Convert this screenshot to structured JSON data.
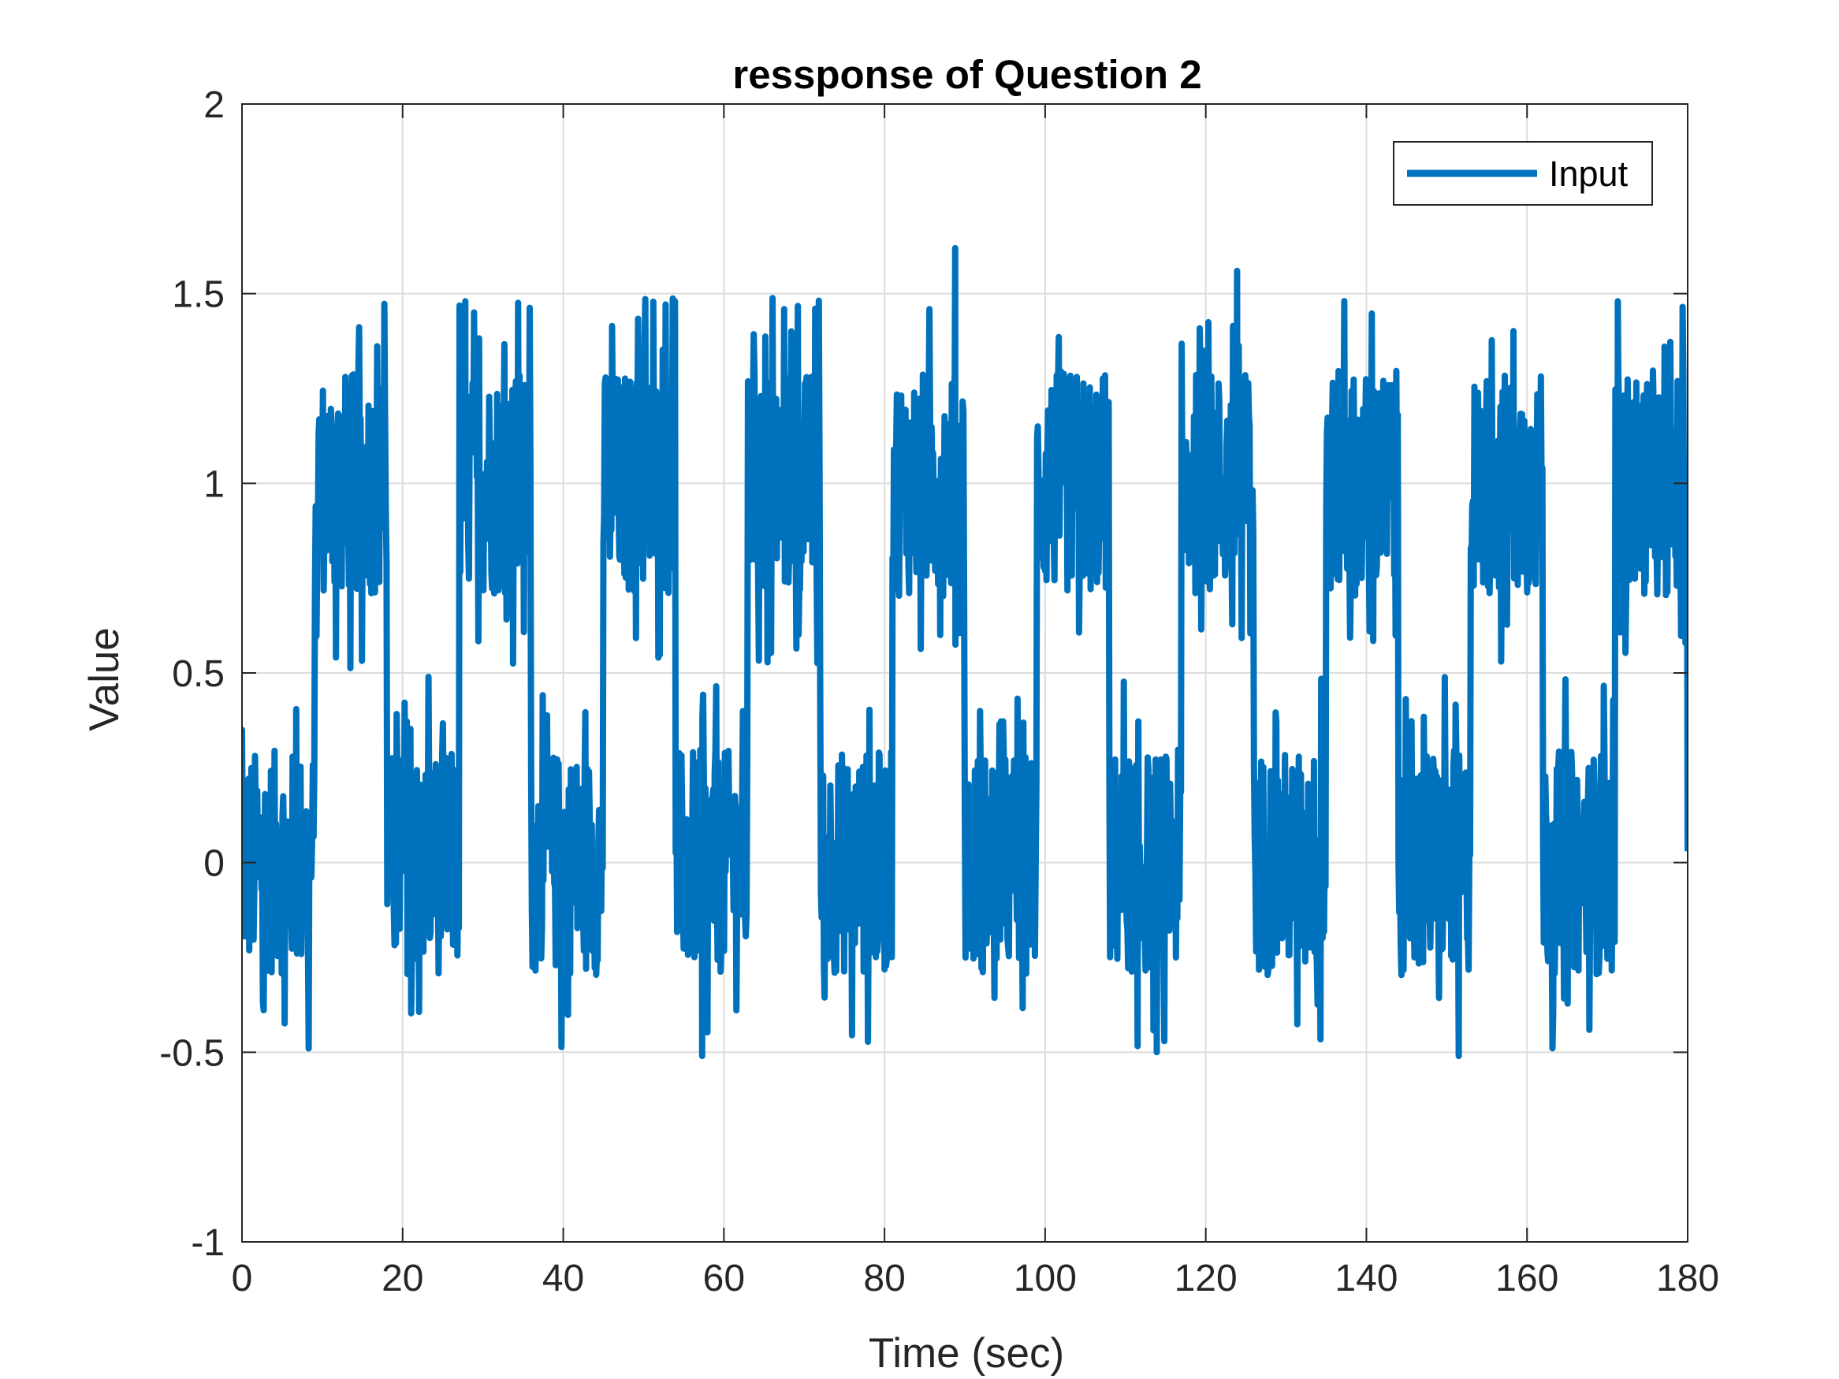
{
  "chart_data": {
    "type": "line",
    "title": "ressponse of Question 2",
    "xlabel": "Time (sec)",
    "ylabel": "Value",
    "xlim": [
      0,
      180
    ],
    "ylim": [
      -1,
      2
    ],
    "x_ticks": [
      0,
      20,
      40,
      60,
      80,
      100,
      120,
      140,
      160,
      180
    ],
    "y_ticks": [
      -1,
      -0.5,
      0,
      0.5,
      1,
      1.5,
      2
    ],
    "x_tick_labels": [
      "0",
      "20",
      "40",
      "60",
      "80",
      "100",
      "120",
      "140",
      "160",
      "180"
    ],
    "y_tick_labels": [
      "-1",
      "-0.5",
      "0",
      "0.5",
      "1",
      "1.5",
      "2"
    ],
    "grid": true,
    "legend_position": "top-right",
    "series": [
      {
        "name": "Input",
        "color": "#0072BD",
        "description": "square wave (period 18 s, low 0, high 1) plus noise of about ±0.35",
        "square_period": 18,
        "low_value": 0,
        "high_value": 1,
        "noise_amplitude": 0.35,
        "segments": [
          {
            "from": 0,
            "to": 9,
            "level": 0
          },
          {
            "from": 9,
            "to": 18,
            "level": 1
          },
          {
            "from": 18,
            "to": 27,
            "level": 0
          },
          {
            "from": 27,
            "to": 36,
            "level": 1
          },
          {
            "from": 36,
            "to": 45,
            "level": 0
          },
          {
            "from": 45,
            "to": 54,
            "level": 1
          },
          {
            "from": 54,
            "to": 63,
            "level": 0
          },
          {
            "from": 63,
            "to": 72,
            "level": 1
          },
          {
            "from": 72,
            "to": 81,
            "level": 0
          },
          {
            "from": 81,
            "to": 90,
            "level": 1
          },
          {
            "from": 90,
            "to": 99,
            "level": 0
          },
          {
            "from": 99,
            "to": 108,
            "level": 1
          },
          {
            "from": 108,
            "to": 117,
            "level": 0
          },
          {
            "from": 117,
            "to": 126,
            "level": 1
          },
          {
            "from": 126,
            "to": 135,
            "level": 0
          },
          {
            "from": 135,
            "to": 144,
            "level": 1
          },
          {
            "from": 144,
            "to": 153,
            "level": 0
          },
          {
            "from": 153,
            "to": 162,
            "level": 1
          },
          {
            "from": 162,
            "to": 171,
            "level": 0
          },
          {
            "from": 171,
            "to": 180,
            "level": 1
          }
        ],
        "notable_points": [
          {
            "x": 0,
            "y": 0.35
          },
          {
            "x": 8.3,
            "y": -0.49
          },
          {
            "x": 27.8,
            "y": 1.48
          },
          {
            "x": 53.9,
            "y": 1.45
          },
          {
            "x": 57.3,
            "y": -0.51
          },
          {
            "x": 88.8,
            "y": 1.62
          },
          {
            "x": 113.9,
            "y": -0.5
          },
          {
            "x": 123.9,
            "y": 1.56
          },
          {
            "x": 151.5,
            "y": -0.51
          },
          {
            "x": 171.3,
            "y": 1.48
          },
          {
            "x": 180,
            "y": 0.03
          }
        ]
      }
    ]
  }
}
